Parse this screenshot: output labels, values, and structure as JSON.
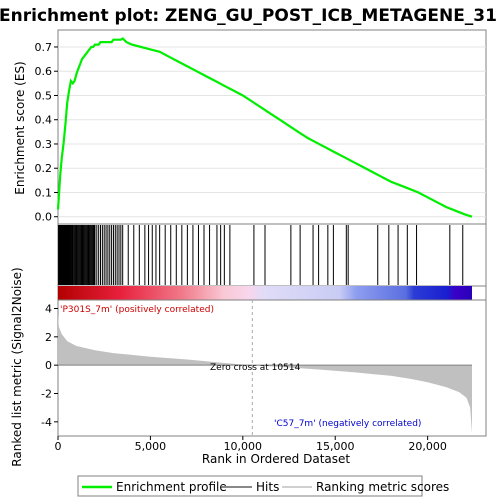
{
  "chart_data": {
    "type": "line",
    "title": "Enrichment plot: ZENG_GU_POST_ICB_METAGENE_31",
    "es_panel": {
      "ylabel": "Enrichment score (ES)",
      "ylim": [
        -0.03,
        0.77
      ],
      "yticks": [
        0.0,
        0.1,
        0.2,
        0.3,
        0.4,
        0.5,
        0.6,
        0.7
      ],
      "ytick_labels": [
        "0.0",
        "0.1",
        "0.2",
        "0.3",
        "0.4",
        "0.5",
        "0.6",
        "0.7"
      ],
      "series": [
        {
          "name": "Enrichment profile",
          "color": "#00ee00",
          "x": [
            0,
            60,
            120,
            200,
            300,
            400,
            500,
            600,
            700,
            800,
            900,
            1000,
            1100,
            1200,
            1300,
            1400,
            1500,
            1600,
            1700,
            1800,
            1900,
            2000,
            2100,
            2200,
            2300,
            2400,
            2500,
            2600,
            2700,
            2800,
            2900,
            3000,
            3100,
            3200,
            3300,
            3400,
            3500,
            3700,
            4000,
            4500,
            5000,
            5500,
            6000,
            6500,
            7000,
            7500,
            8000,
            8500,
            9000,
            9500,
            10000,
            10500,
            11000,
            11500,
            12000,
            12500,
            13000,
            13500,
            14000,
            14500,
            15000,
            15500,
            16000,
            16500,
            17000,
            17500,
            18000,
            18500,
            19000,
            19500,
            20000,
            20500,
            21000,
            21500,
            22000,
            22400
          ],
          "values": [
            0.03,
            0.1,
            0.17,
            0.24,
            0.3,
            0.38,
            0.47,
            0.52,
            0.56,
            0.55,
            0.56,
            0.59,
            0.61,
            0.63,
            0.65,
            0.66,
            0.67,
            0.68,
            0.69,
            0.7,
            0.7,
            0.71,
            0.71,
            0.71,
            0.72,
            0.72,
            0.72,
            0.72,
            0.72,
            0.72,
            0.72,
            0.73,
            0.73,
            0.73,
            0.73,
            0.73,
            0.735,
            0.72,
            0.71,
            0.7,
            0.69,
            0.68,
            0.66,
            0.64,
            0.62,
            0.6,
            0.58,
            0.56,
            0.54,
            0.52,
            0.5,
            0.475,
            0.45,
            0.425,
            0.4,
            0.375,
            0.35,
            0.325,
            0.305,
            0.285,
            0.265,
            0.245,
            0.225,
            0.205,
            0.185,
            0.165,
            0.145,
            0.13,
            0.115,
            0.1,
            0.08,
            0.06,
            0.04,
            0.025,
            0.01,
            0.0
          ]
        }
      ]
    },
    "hits": {
      "label": "Hits",
      "positions": [
        30,
        60,
        90,
        120,
        150,
        180,
        210,
        240,
        270,
        300,
        330,
        360,
        390,
        420,
        450,
        480,
        510,
        540,
        570,
        600,
        640,
        680,
        720,
        760,
        800,
        850,
        900,
        950,
        1000,
        1050,
        1100,
        1150,
        1200,
        1250,
        1300,
        1350,
        1400,
        1450,
        1500,
        1550,
        1600,
        1650,
        1700,
        1750,
        1800,
        1850,
        1900,
        1950,
        2000,
        2100,
        2200,
        2300,
        2400,
        2500,
        2600,
        2700,
        2800,
        2900,
        3000,
        3100,
        3200,
        3300,
        3400,
        3500,
        3800,
        4100,
        4400,
        4700,
        4900,
        5100,
        5300,
        5500,
        5800,
        6100,
        6400,
        6700,
        7000,
        7300,
        7600,
        7900,
        8200,
        8600,
        8800,
        9000,
        9300,
        10600,
        11200,
        12600,
        13100,
        13800,
        14100,
        14600,
        14900,
        15600,
        15700,
        17300,
        17900,
        18400,
        18900,
        19400,
        21200,
        21900
      ]
    },
    "ranked_metric": {
      "ylabel": "Ranked list metric (Signal2Noise)",
      "ylim": [
        -5,
        4.6
      ],
      "yticks": [
        4,
        2,
        0,
        -2,
        -4
      ],
      "ytick_labels": [
        "4",
        "2",
        "0",
        "-2",
        "-4"
      ],
      "x": [
        0,
        50,
        200,
        500,
        1000,
        2000,
        3000,
        5000,
        7000,
        8000,
        9000,
        10514,
        12000,
        14000,
        16000,
        18000,
        19000,
        20000,
        21000,
        21700,
        22100,
        22300,
        22400
      ],
      "values": [
        3.6,
        2.7,
        2.2,
        1.7,
        1.35,
        1.05,
        0.85,
        0.6,
        0.4,
        0.28,
        0.15,
        0.0,
        -0.12,
        -0.3,
        -0.5,
        -0.75,
        -0.95,
        -1.2,
        -1.55,
        -1.9,
        -2.3,
        -3.0,
        -4.8
      ],
      "zero_cross_label": "Zero cross at 10514",
      "zero_cross": 10514,
      "positive_label": "'P301S_7m' (positively correlated)",
      "negative_label": "'C57_7m' (negatively correlated)",
      "positive_color": "#cc0000",
      "negative_color": "#0000cc"
    },
    "xaxis": {
      "xlabel": "Rank in Ordered Dataset",
      "xlim": [
        0,
        22400
      ],
      "xticks": [
        0,
        5000,
        10000,
        15000,
        20000
      ],
      "xtick_labels": [
        "0",
        "5,000",
        "10,000",
        "15,000",
        "20,000"
      ]
    },
    "legend": {
      "items": [
        {
          "label": "Enrichment profile",
          "color": "#00ee00"
        },
        {
          "label": "Hits",
          "color": "#888888"
        },
        {
          "label": "Ranking metric scores",
          "color": "#d0d0d0"
        }
      ]
    }
  }
}
